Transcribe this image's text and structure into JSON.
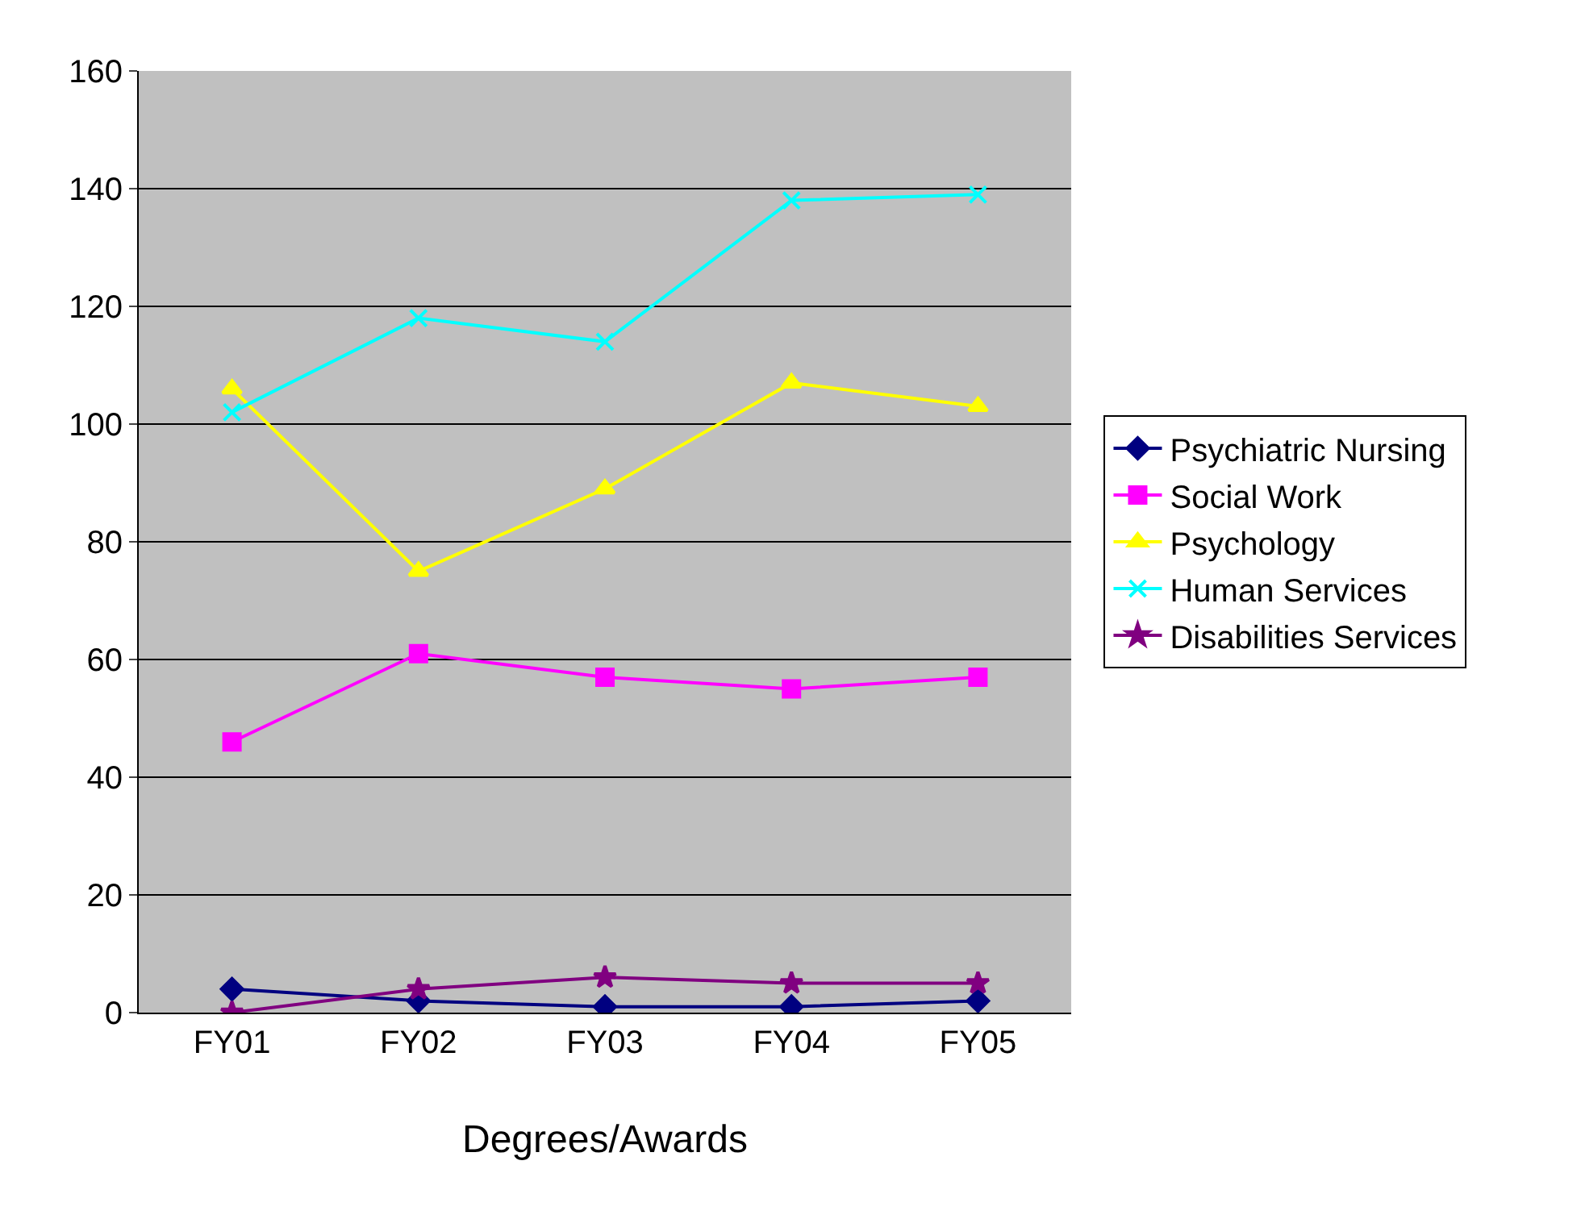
{
  "chart_data": {
    "type": "line",
    "xlabel": "Degrees/Awards",
    "categories": [
      "FY01",
      "FY02",
      "FY03",
      "FY04",
      "FY05"
    ],
    "series": [
      {
        "name": "Psychiatric Nursing",
        "color": "#000080",
        "marker": "diamond",
        "values": [
          4,
          2,
          1,
          1,
          2
        ]
      },
      {
        "name": "Social Work",
        "color": "#ff00ff",
        "marker": "square",
        "values": [
          46,
          61,
          57,
          55,
          57
        ]
      },
      {
        "name": "Psychology",
        "color": "#ffff00",
        "marker": "triangle",
        "values": [
          106,
          75,
          89,
          107,
          103
        ]
      },
      {
        "name": "Human Services",
        "color": "#00ffff",
        "marker": "cross",
        "values": [
          102,
          118,
          114,
          138,
          139
        ]
      },
      {
        "name": "Disabilities Services",
        "color": "#800080",
        "marker": "star",
        "values": [
          0,
          4,
          6,
          5,
          5
        ]
      }
    ],
    "ylim": [
      0,
      160
    ],
    "yticks": [
      0,
      20,
      40,
      60,
      80,
      100,
      120,
      140,
      160
    ],
    "grid": "y",
    "legend": "right",
    "line_style": "solid"
  }
}
